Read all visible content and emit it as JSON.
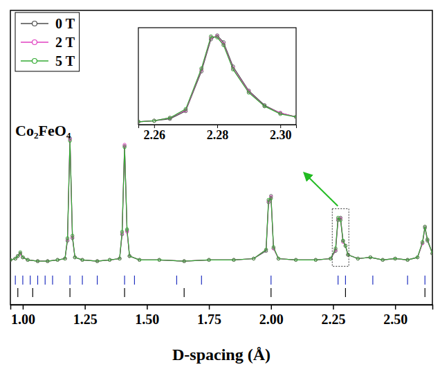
{
  "chart_data": {
    "type": "line",
    "xlabel": "D-spacing (Å)",
    "annotations": [
      "Co₂FeO₄"
    ],
    "x": [
      0.95,
      0.97,
      0.98,
      0.99,
      1.0,
      1.02,
      1.06,
      1.1,
      1.14,
      1.17,
      1.18,
      1.19,
      1.2,
      1.21,
      1.24,
      1.3,
      1.35,
      1.39,
      1.4,
      1.41,
      1.42,
      1.43,
      1.47,
      1.55,
      1.65,
      1.75,
      1.85,
      1.93,
      1.98,
      1.99,
      2.0,
      2.01,
      2.03,
      2.1,
      2.18,
      2.24,
      2.26,
      2.27,
      2.28,
      2.29,
      2.3,
      2.31,
      2.35,
      2.4,
      2.45,
      2.5,
      2.55,
      2.59,
      2.61,
      2.62,
      2.63,
      2.65
    ],
    "series": [
      {
        "name": "0 T",
        "color": "#4d4d4d",
        "marker": "circle",
        "values": [
          5,
          6,
          8,
          10,
          7,
          5,
          4,
          4,
          5,
          6,
          20,
          100,
          22,
          7,
          5,
          4,
          5,
          6,
          25,
          94,
          28,
          8,
          5,
          5,
          4,
          5,
          5,
          6,
          12,
          50,
          55,
          14,
          6,
          5,
          5,
          6,
          12,
          36,
          38,
          20,
          16,
          9,
          6,
          7,
          5,
          6,
          5,
          7,
          18,
          30,
          20,
          10
        ]
      },
      {
        "name": "2 T",
        "color": "#e040c0",
        "marker": "circle",
        "values": [
          5,
          6,
          8,
          10,
          7,
          5,
          4,
          4,
          5,
          6,
          21,
          99,
          23,
          7,
          5,
          4,
          5,
          6,
          26,
          95,
          27,
          8,
          5,
          5,
          4,
          5,
          5,
          6,
          13,
          51,
          54,
          14,
          6,
          5,
          5,
          6,
          13,
          37,
          37,
          19,
          16,
          9,
          6,
          7,
          5,
          6,
          5,
          7,
          18,
          31,
          21,
          10
        ]
      },
      {
        "name": "5 T",
        "color": "#33aa33",
        "marker": "circle",
        "values": [
          5,
          6,
          8,
          11,
          7,
          5,
          4,
          4,
          5,
          6,
          22,
          98,
          24,
          7,
          5,
          4,
          5,
          6,
          27,
          93,
          29,
          8,
          5,
          5,
          4,
          5,
          5,
          6,
          13,
          52,
          53,
          15,
          6,
          5,
          5,
          6,
          14,
          38,
          36,
          20,
          16,
          9,
          6,
          7,
          5,
          6,
          5,
          7,
          19,
          31,
          21,
          10
        ]
      }
    ],
    "xlim": [
      0.95,
      2.65
    ],
    "xticks": [
      {
        "value": 1.0,
        "label": "1.00"
      },
      {
        "value": 1.25,
        "label": "1.25"
      },
      {
        "value": 1.5,
        "label": "1.50"
      },
      {
        "value": 1.75,
        "label": "1.75"
      },
      {
        "value": 2.0,
        "label": "2.00"
      },
      {
        "value": 2.25,
        "label": "2.25"
      },
      {
        "value": 2.5,
        "label": "2.50"
      }
    ],
    "ylim": [
      -30,
      200
    ],
    "tick_labels": "x",
    "legend": "upper left",
    "reflections": [
      {
        "color": "#2030c0",
        "values": [
          0.97,
          1.0,
          1.03,
          1.06,
          1.09,
          1.12,
          1.19,
          1.24,
          1.3,
          1.41,
          1.45,
          1.62,
          1.72,
          2.0,
          2.27,
          2.3,
          2.41,
          2.55,
          2.62
        ]
      },
      {
        "color": "#000000",
        "values": [
          0.98,
          1.04,
          1.19,
          1.41,
          1.65,
          2.0,
          2.3,
          2.62
        ]
      }
    ],
    "inset": {
      "x": [
        2.255,
        2.26,
        2.265,
        2.27,
        2.275,
        2.278,
        2.28,
        2.282,
        2.285,
        2.29,
        2.295,
        2.3,
        2.305
      ],
      "xlim": [
        2.255,
        2.305
      ],
      "xticks": [
        2.26,
        2.28,
        {
          "value": 2.3,
          "label": "2.30"
        }
      ],
      "ylim": [
        0,
        100
      ],
      "series": [
        {
          "values": [
            3,
            4,
            6,
            14,
            55,
            88,
            92,
            85,
            60,
            35,
            20,
            12,
            8
          ]
        },
        {
          "values": [
            3,
            4,
            7,
            15,
            57,
            90,
            91,
            83,
            58,
            34,
            19,
            12,
            8
          ]
        },
        {
          "values": [
            3,
            4,
            7,
            16,
            58,
            91,
            90,
            82,
            57,
            33,
            19,
            11,
            8
          ]
        }
      ]
    }
  }
}
